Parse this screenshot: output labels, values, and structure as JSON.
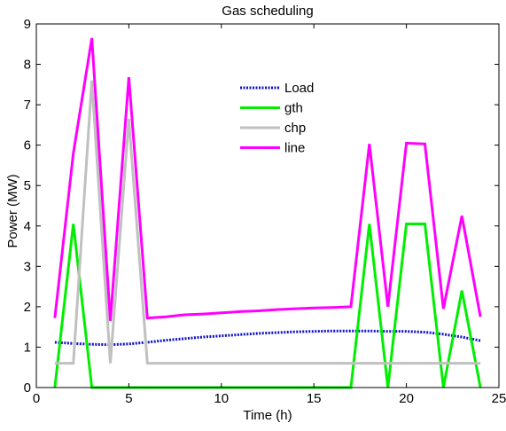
{
  "chart_data": {
    "type": "line",
    "title": "Gas scheduling",
    "xlabel": "Time (h)",
    "ylabel": "Power (MW)",
    "xlim": [
      0,
      25
    ],
    "ylim": [
      0,
      9
    ],
    "xticks": [
      0,
      5,
      10,
      15,
      20,
      25
    ],
    "yticks": [
      0,
      1,
      2,
      3,
      4,
      5,
      6,
      7,
      8,
      9
    ],
    "grid": false,
    "legend_position": "upper-center",
    "x": [
      1,
      2,
      3,
      4,
      5,
      6,
      7,
      8,
      9,
      10,
      11,
      12,
      13,
      14,
      15,
      16,
      17,
      18,
      19,
      20,
      21,
      22,
      23,
      24
    ],
    "series": [
      {
        "name": "Load",
        "color": "#1010d0",
        "style": "dotted",
        "values": [
          1.12,
          1.09,
          1.07,
          1.06,
          1.08,
          1.12,
          1.17,
          1.21,
          1.25,
          1.28,
          1.31,
          1.34,
          1.36,
          1.38,
          1.39,
          1.4,
          1.4,
          1.4,
          1.39,
          1.39,
          1.37,
          1.32,
          1.25,
          1.16
        ]
      },
      {
        "name": "gth",
        "color": "#00ee00",
        "style": "solid",
        "values": [
          0,
          4.05,
          0,
          0,
          0,
          0,
          0,
          0,
          0,
          0,
          0,
          0,
          0,
          0,
          0,
          0,
          0,
          4.05,
          0,
          4.05,
          4.05,
          0,
          2.4,
          0
        ]
      },
      {
        "name": "chp",
        "color": "#c0c0c0",
        "style": "solid",
        "values": [
          0.6,
          0.6,
          7.6,
          0.6,
          6.65,
          0.6,
          0.6,
          0.6,
          0.6,
          0.6,
          0.6,
          0.6,
          0.6,
          0.6,
          0.6,
          0.6,
          0.6,
          0.6,
          0.6,
          0.6,
          0.6,
          0.6,
          0.6,
          0.6
        ]
      },
      {
        "name": "line",
        "color": "#ff00ff",
        "style": "solid",
        "values": [
          1.72,
          5.8,
          8.65,
          1.65,
          7.68,
          1.72,
          1.75,
          1.8,
          1.82,
          1.85,
          1.88,
          1.9,
          1.93,
          1.95,
          1.97,
          1.98,
          2.0,
          6.03,
          2.0,
          6.05,
          6.03,
          1.95,
          4.25,
          1.75
        ]
      }
    ]
  }
}
